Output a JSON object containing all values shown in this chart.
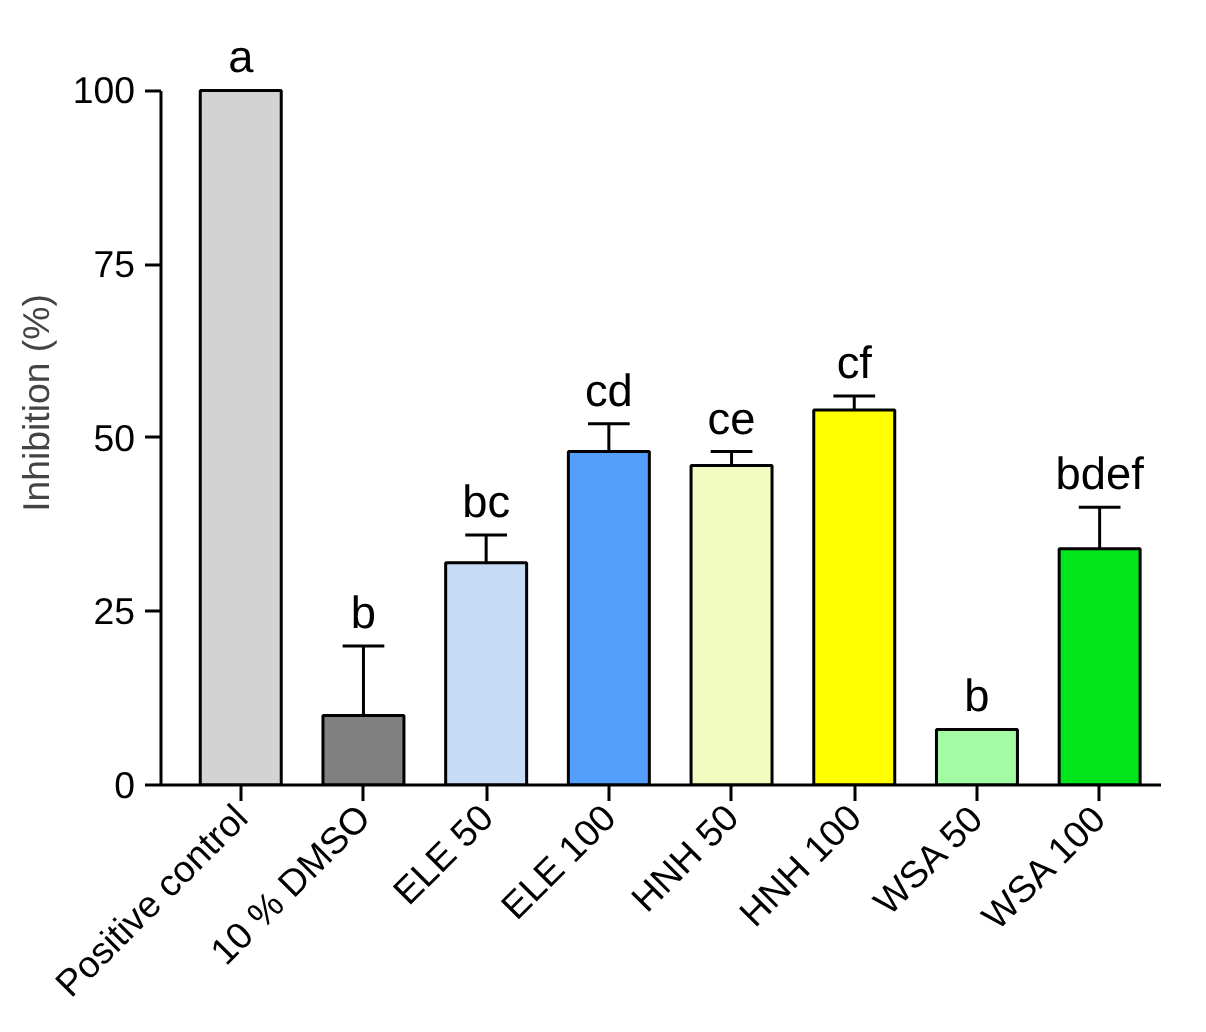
{
  "chart_data": {
    "type": "bar",
    "ylabel": "Inhibition (%)",
    "categories": [
      "Positive control",
      "10 % DMSO",
      "ELE 50",
      "ELE 100",
      "HNH 50",
      "HNH 100",
      "WSA 50",
      "WSA 100"
    ],
    "values": [
      100,
      10,
      32,
      48,
      46,
      54,
      8,
      34
    ],
    "colors": [
      "#d3d3d3",
      "#808080",
      "#c6dbf5",
      "#559ffc",
      "#f2fcc0",
      "#ffff00",
      "#a3fca3",
      "#00e61a"
    ],
    "errors": [
      null,
      [
        10,
        20
      ],
      [
        32,
        36
      ],
      [
        48,
        52
      ],
      [
        46,
        48
      ],
      [
        54,
        56
      ],
      null,
      [
        34,
        40
      ]
    ],
    "ylim": [
      0,
      100
    ],
    "yticks": [
      0,
      25,
      50,
      75,
      100
    ],
    "grid": false,
    "annotations": [
      {
        "text": "a",
        "x": "Positive control",
        "y": 100
      },
      {
        "text": "b",
        "x": "10 % DMSO",
        "y": 20
      },
      {
        "text": "bc",
        "x": "ELE 50",
        "y": 36
      },
      {
        "text": "cd",
        "x": "ELE 100",
        "y": 52
      },
      {
        "text": "ce",
        "x": "HNH 50",
        "y": 48
      },
      {
        "text": "cf",
        "x": "HNH 100",
        "y": 56
      },
      {
        "text": "b",
        "x": "WSA 50",
        "y": 8
      },
      {
        "text": "bdef",
        "x": "WSA 100",
        "y": 40
      }
    ]
  }
}
